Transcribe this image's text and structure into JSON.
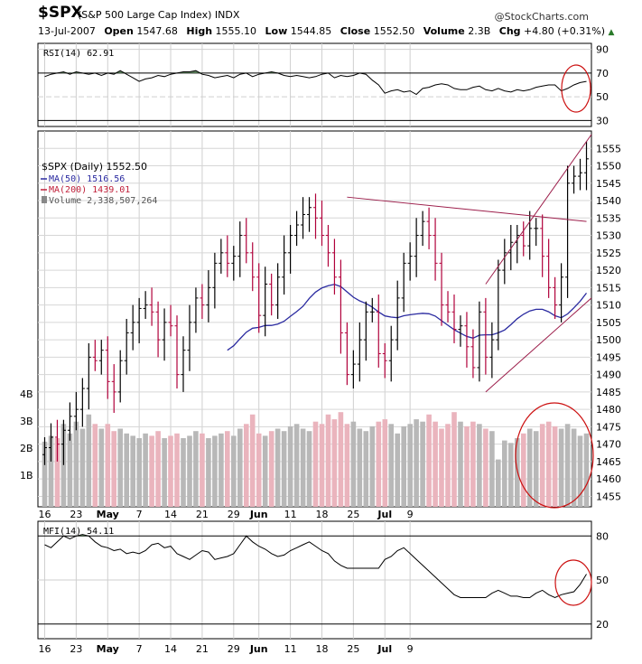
{
  "header": {
    "symbol": "$SPX",
    "name": "(S&P 500 Large Cap Index) INDX",
    "brand": "@StockCharts.com",
    "date": "13-Jul-2007",
    "open_label": "Open",
    "open": "1547.68",
    "high_label": "High",
    "high": "1555.10",
    "low_label": "Low",
    "low": "1544.85",
    "close_label": "Close",
    "close": "1552.50",
    "volume_label": "Volume",
    "volume": "2.3B",
    "chg_label": "Chg",
    "chg": "+4.80 (+0.31%)"
  },
  "colors": {
    "up": "#000000",
    "down": "#b0003a",
    "ma50": "#2a2aa0",
    "ma200": "#c0203a",
    "vol_up": "#b8b8b8",
    "vol_down": "#eab4bd",
    "annot": "#cc1010",
    "trend": "#9c1d4a",
    "overbought_fill": "#4f7a4f"
  },
  "chart_data": [
    {
      "type": "line",
      "name": "RSI(14)",
      "legend": "RSI(14) 62.91",
      "y_ticks": [
        30,
        50,
        70,
        90
      ],
      "ylim": [
        25,
        95
      ],
      "values": [
        67,
        69,
        70,
        71,
        69,
        71,
        70,
        69,
        70,
        68,
        70,
        69,
        72,
        69,
        66,
        63,
        65,
        66,
        68,
        67,
        69,
        70,
        71,
        71,
        72,
        69,
        68,
        66,
        67,
        68,
        66,
        69,
        70,
        67,
        69,
        70,
        71,
        70,
        68,
        67,
        68,
        67,
        66,
        67,
        69,
        70,
        66,
        68,
        67,
        68,
        70,
        69,
        64,
        60,
        53,
        55,
        56,
        54,
        55,
        52,
        57,
        58,
        60,
        61,
        60,
        57,
        56,
        56,
        58,
        59,
        56,
        55,
        57,
        55,
        54,
        56,
        55,
        56,
        58,
        59,
        60,
        60,
        55,
        57,
        60,
        62,
        63
      ]
    },
    {
      "type": "candlestick",
      "name": "$SPX (Daily)",
      "legend": "$SPX (Daily) 1552.50",
      "legend_ma50": "MA(50) 1516.56",
      "legend_ma200": "MA(200) 1439.01",
      "legend_volume": "Volume 2,338,507,264",
      "y_ticks": [
        1455,
        1460,
        1465,
        1470,
        1475,
        1480,
        1485,
        1490,
        1495,
        1500,
        1505,
        1510,
        1515,
        1520,
        1525,
        1530,
        1535,
        1540,
        1545,
        1550,
        1555
      ],
      "ylim": [
        1452,
        1560
      ],
      "x_labels": [
        "16",
        "23",
        "May",
        "7",
        "14",
        "21",
        "29",
        "Jun",
        "11",
        "18",
        "25",
        "Jul",
        "9"
      ],
      "volume_ticks": [
        "1B",
        "2B",
        "3B",
        "4B"
      ],
      "close": [
        1469,
        1472,
        1470,
        1474,
        1478,
        1480,
        1486,
        1495,
        1494,
        1497,
        1488,
        1485,
        1494,
        1502,
        1505,
        1509,
        1510,
        1508,
        1500,
        1505,
        1504,
        1490,
        1497,
        1505,
        1512,
        1510,
        1515,
        1522,
        1525,
        1522,
        1524,
        1530,
        1525,
        1518,
        1507,
        1516,
        1510,
        1518,
        1525,
        1530,
        1533,
        1536,
        1538,
        1535,
        1530,
        1525,
        1518,
        1502,
        1490,
        1493,
        1500,
        1508,
        1508,
        1496,
        1494,
        1500,
        1512,
        1522,
        1524,
        1530,
        1534,
        1530,
        1522,
        1510,
        1508,
        1503,
        1504,
        1498,
        1492,
        1508,
        1495,
        1500,
        1520,
        1525,
        1528,
        1530,
        1527,
        1532,
        1532,
        1524,
        1515,
        1510,
        1518,
        1545,
        1547,
        1548,
        1552
      ]
    },
    {
      "type": "line",
      "name": "MFI(14)",
      "legend": "MFI(14) 54.11",
      "y_ticks": [
        20,
        50,
        80
      ],
      "ylim": [
        10,
        90
      ],
      "values": [
        74,
        72,
        76,
        80,
        78,
        80,
        81,
        80,
        76,
        73,
        72,
        70,
        71,
        68,
        69,
        68,
        70,
        74,
        75,
        72,
        73,
        68,
        66,
        64,
        67,
        70,
        69,
        64,
        65,
        66,
        68,
        74,
        80,
        76,
        73,
        71,
        68,
        66,
        67,
        70,
        72,
        74,
        76,
        73,
        70,
        68,
        63,
        60,
        58,
        58,
        58,
        58,
        58,
        58,
        64,
        66,
        70,
        72,
        68,
        64,
        60,
        56,
        52,
        48,
        44,
        40,
        38,
        38,
        38,
        38,
        38,
        41,
        43,
        41,
        39,
        39,
        38,
        38,
        41,
        43,
        40,
        38,
        40,
        41,
        42,
        47,
        54
      ]
    }
  ],
  "bottom_axis": [
    "16",
    "23",
    "May",
    "7",
    "14",
    "21",
    "29",
    "Jun",
    "11",
    "18",
    "25",
    "Jul",
    "9"
  ]
}
